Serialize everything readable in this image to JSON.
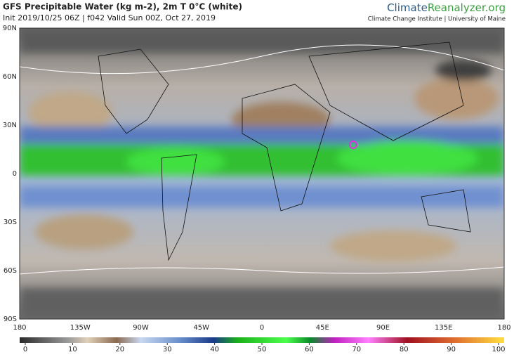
{
  "header": {
    "title": "GFS Precipitable Water (kg m-2), 2m T 0°C (white)",
    "subtitle": "Init 2019/10/25 06Z | f042 Valid Sun 00Z, Oct 27, 2019"
  },
  "brand": {
    "name_part1": "Climate",
    "name_part2": "Reanalyzer",
    "domain": ".org",
    "institute": "Climate Change Institute | University of Maine"
  },
  "map": {
    "lat_labels": [
      "90N",
      "60N",
      "30N",
      "0",
      "30S",
      "60S",
      "90S"
    ],
    "lon_labels": [
      "180",
      "135W",
      "90W",
      "45W",
      "0",
      "45E",
      "90E",
      "135E",
      "180"
    ]
  },
  "colorbar": {
    "ticks": [
      0,
      10,
      20,
      30,
      40,
      50,
      60,
      70,
      80,
      90,
      100
    ]
  }
}
